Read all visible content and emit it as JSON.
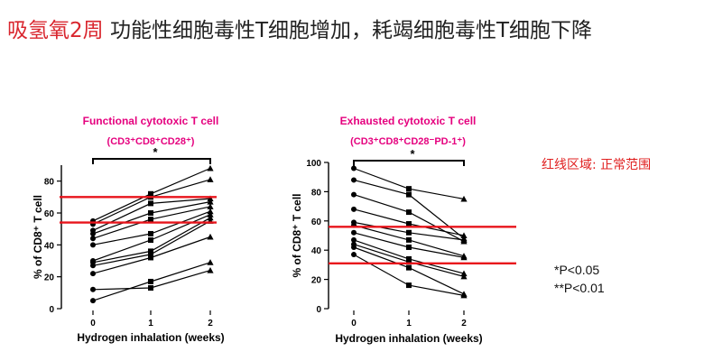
{
  "header": {
    "title_prefix": "吸氢氧2周",
    "title_rest": " 功能性细胞毒性T细胞增加，耗竭细胞毒性T细胞下降"
  },
  "notes": {
    "normal_range": "红线区域: 正常范围",
    "p_single": "*P<0.05",
    "p_double": "**P<0.01"
  },
  "colors": {
    "title_red": "#d9262e",
    "chart_title": "#e5007e",
    "reference_line": "#e8141b",
    "marker": "#000000"
  },
  "chart_data": [
    {
      "type": "line",
      "title": "Functional cytotoxic T cell",
      "subtitle": "(CD3⁺CD8⁺CD28⁺)",
      "xlabel": "Hydrogen inhalation (weeks)",
      "ylabel": "% of CD8⁺ T cell",
      "x": [
        0,
        1,
        2
      ],
      "xticks": [
        "0",
        "1",
        "2"
      ],
      "ylim": [
        0,
        90
      ],
      "yticks": [
        0,
        20,
        40,
        60,
        80
      ],
      "significance": "*",
      "reference_lines": [
        70,
        54
      ],
      "series": [
        {
          "values": [
            5,
            17,
            29
          ]
        },
        {
          "values": [
            12,
            13,
            24
          ]
        },
        {
          "values": [
            22,
            32,
            45
          ]
        },
        {
          "values": [
            27,
            34,
            55
          ]
        },
        {
          "values": [
            29,
            36,
            57
          ]
        },
        {
          "values": [
            30,
            43,
            59
          ]
        },
        {
          "values": [
            40,
            47,
            61
          ]
        },
        {
          "values": [
            44,
            56,
            64
          ]
        },
        {
          "values": [
            47,
            60,
            67
          ]
        },
        {
          "values": [
            49,
            66,
            69
          ]
        },
        {
          "values": [
            53,
            70,
            81
          ]
        },
        {
          "values": [
            55,
            72,
            88
          ]
        }
      ]
    },
    {
      "type": "line",
      "title": "Exhausted cytotoxic T cell",
      "subtitle": "(CD3⁺CD8⁺CD28⁻PD-1⁺)",
      "xlabel": "Hydrogen inhalation (weeks)",
      "ylabel": "% of CD8⁺ T cell",
      "x": [
        0,
        1,
        2
      ],
      "xticks": [
        "0",
        "1",
        "2"
      ],
      "ylim": [
        0,
        100
      ],
      "yticks": [
        0,
        20,
        40,
        60,
        80,
        100
      ],
      "significance": "*",
      "reference_lines": [
        56,
        31
      ],
      "series": [
        {
          "values": [
            96,
            82,
            75
          ]
        },
        {
          "values": [
            88,
            78,
            48
          ]
        },
        {
          "values": [
            78,
            66,
            46
          ]
        },
        {
          "values": [
            68,
            58,
            50
          ]
        },
        {
          "values": [
            59,
            52,
            47
          ]
        },
        {
          "values": [
            57,
            47,
            36
          ]
        },
        {
          "values": [
            52,
            42,
            35
          ]
        },
        {
          "values": [
            47,
            34,
            24
          ]
        },
        {
          "values": [
            44,
            32,
            22
          ]
        },
        {
          "values": [
            42,
            28,
            10
          ]
        },
        {
          "values": [
            37,
            16,
            9
          ]
        }
      ]
    }
  ]
}
